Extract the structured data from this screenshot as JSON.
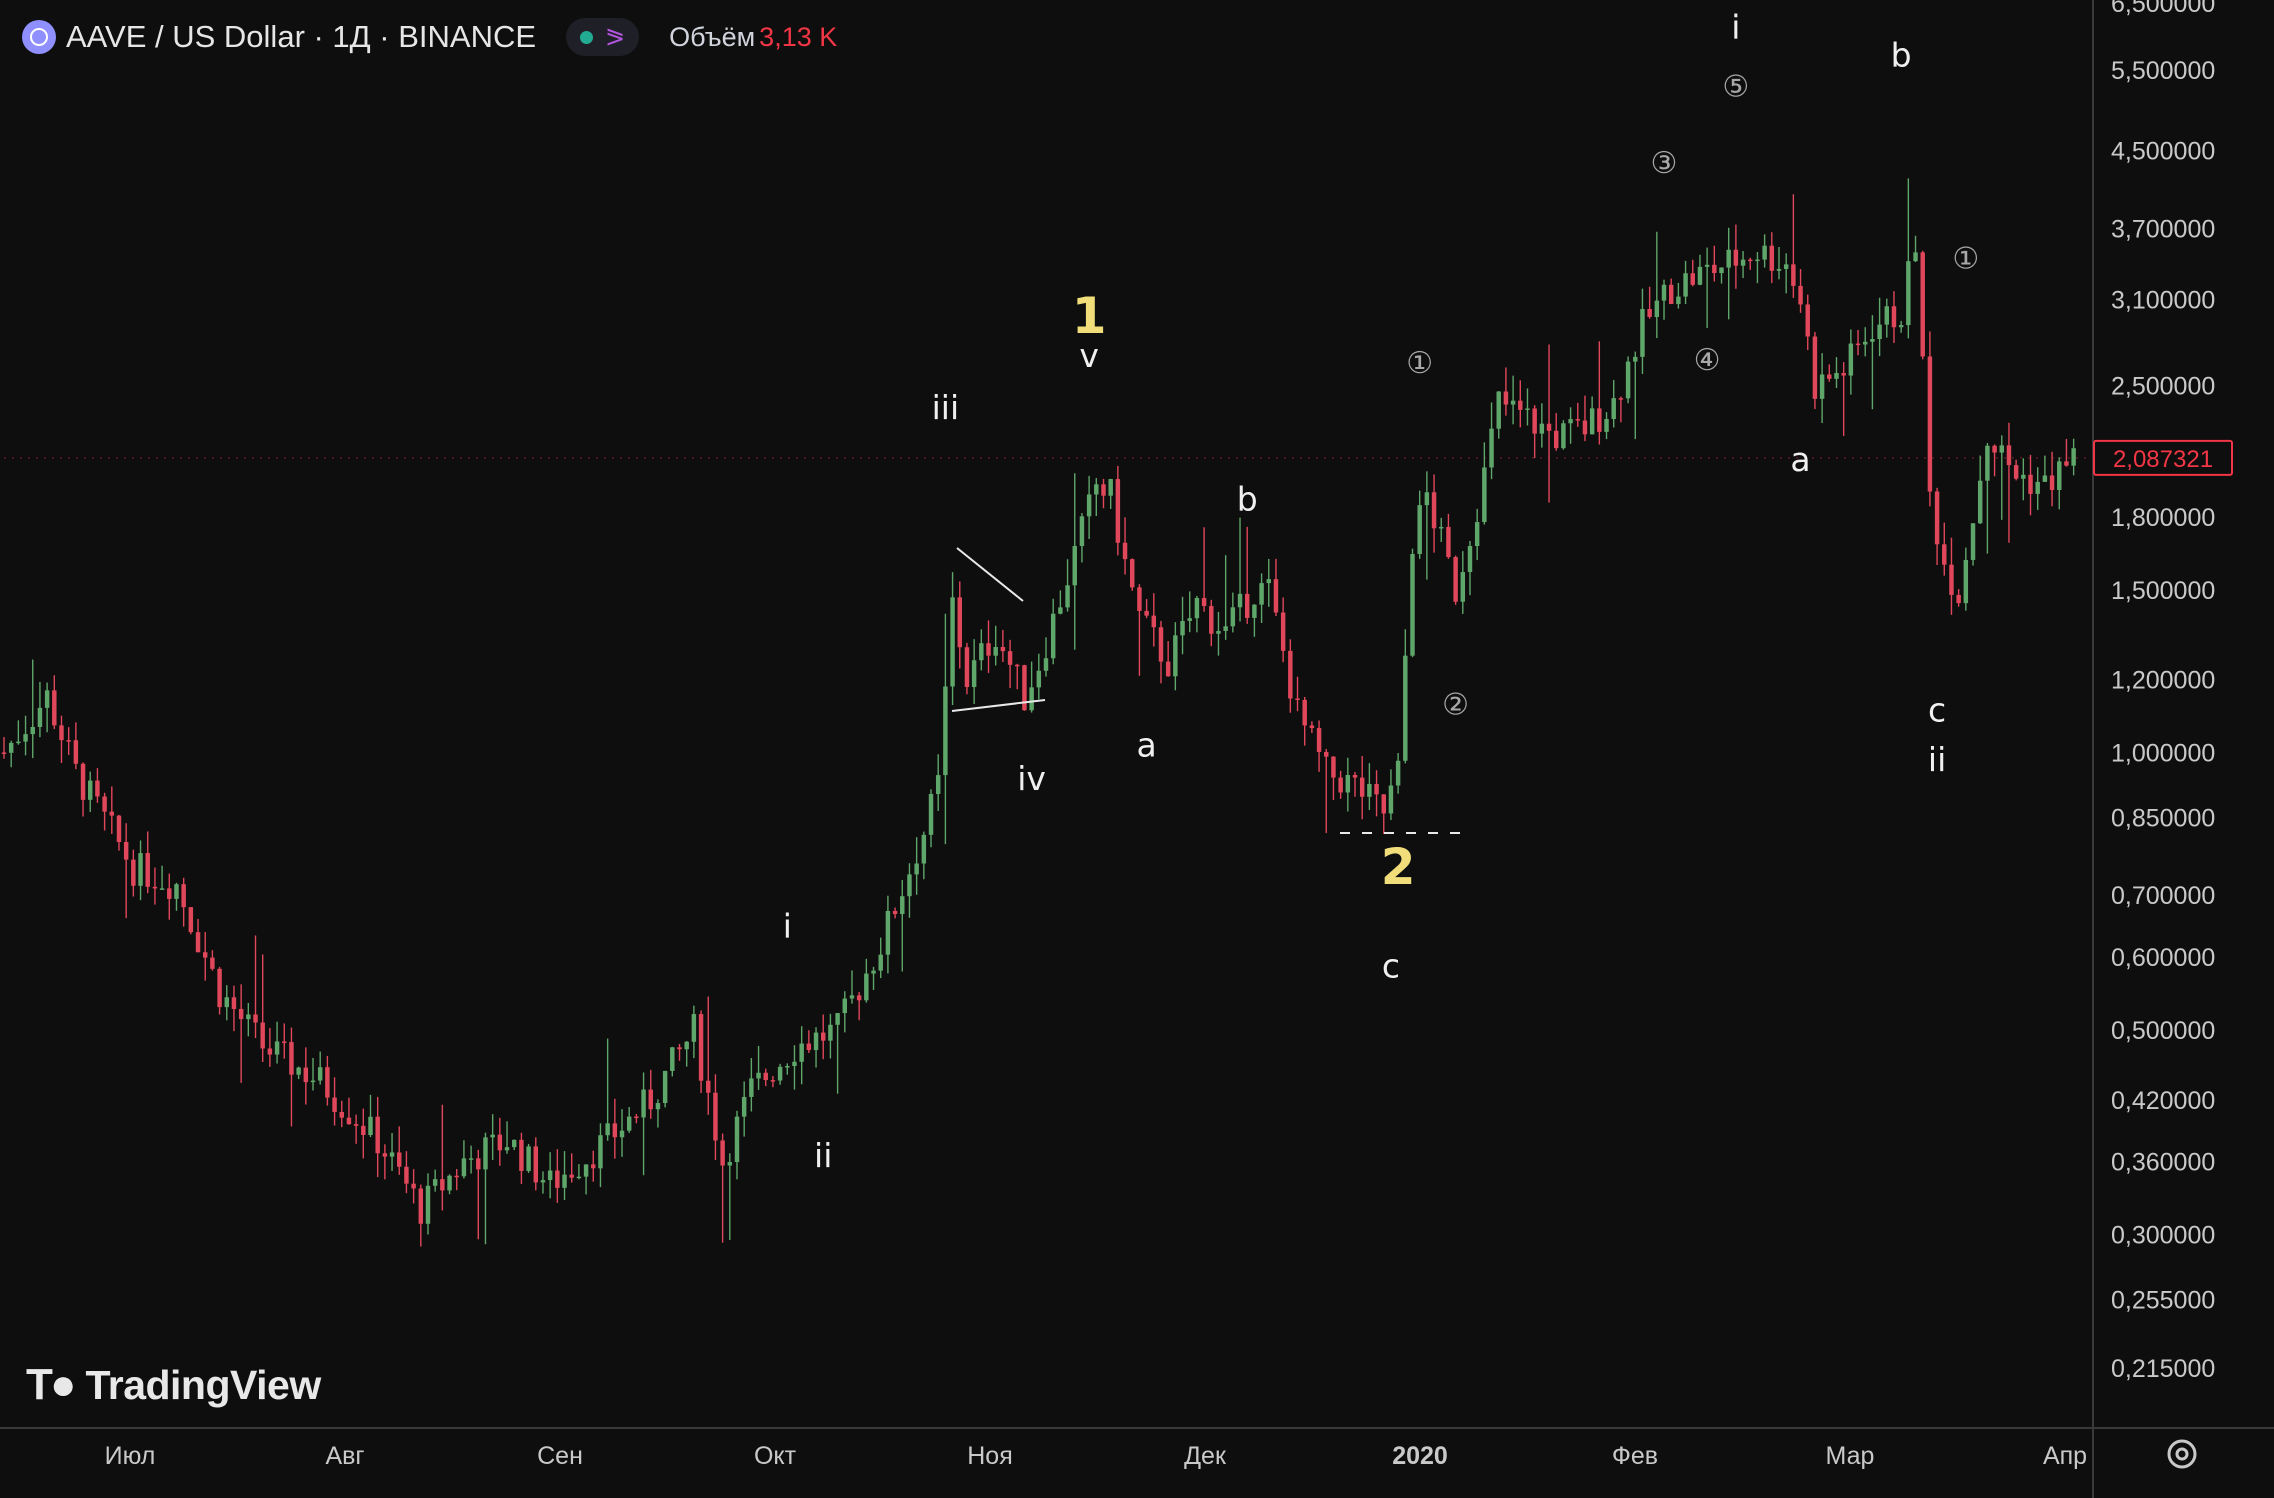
{
  "header": {
    "title": "AAVE / US Dollar · 1Д · BINANCE",
    "volume_label": "Объём",
    "volume_value": "3,13 K"
  },
  "brand": {
    "name": "TradingView"
  },
  "colors": {
    "up": "#5fa66a",
    "down": "#e0475a",
    "background": "#0e0e0e",
    "wave_major": "#f1de7a",
    "last_price": "#f23645"
  },
  "chart_data": {
    "type": "candlestick",
    "title": "AAVE / US Dollar · 1Д · BINANCE",
    "y_scale": "log",
    "ylim": [
      0.185,
      6.55
    ],
    "x_ticks": [
      "Июл",
      "Авг",
      "Сен",
      "Окт",
      "Ноя",
      "Дек",
      "2020",
      "Фев",
      "Мар",
      "Апр"
    ],
    "y_ticks": [
      "6,500000",
      "5,500000",
      "4,500000",
      "3,700000",
      "3,100000",
      "2,500000",
      "1,800000",
      "1,500000",
      "1,200000",
      "1,000000",
      "0,850000",
      "0,700000",
      "0,600000",
      "0,500000",
      "0,420000",
      "0,360000",
      "0,300000",
      "0,255000",
      "0,215000"
    ],
    "last_price": "2,087321",
    "price_path": [
      {
        "t": 0,
        "p": 1.0
      },
      {
        "t": 6,
        "p": 1.15
      },
      {
        "t": 10,
        "p": 0.95
      },
      {
        "t": 18,
        "p": 0.75
      },
      {
        "t": 24,
        "p": 0.72
      },
      {
        "t": 30,
        "p": 0.55
      },
      {
        "t": 36,
        "p": 0.48
      },
      {
        "t": 44,
        "p": 0.44
      },
      {
        "t": 52,
        "p": 0.38
      },
      {
        "t": 58,
        "p": 0.32
      },
      {
        "t": 64,
        "p": 0.36
      },
      {
        "t": 70,
        "p": 0.38
      },
      {
        "t": 76,
        "p": 0.34
      },
      {
        "t": 84,
        "p": 0.38
      },
      {
        "t": 90,
        "p": 0.42
      },
      {
        "t": 96,
        "p": 0.5
      },
      {
        "t": 100,
        "p": 0.36
      },
      {
        "t": 104,
        "p": 0.43
      },
      {
        "t": 110,
        "p": 0.48
      },
      {
        "t": 116,
        "p": 0.5
      },
      {
        "t": 122,
        "p": 0.62
      },
      {
        "t": 128,
        "p": 0.82
      },
      {
        "t": 130,
        "p": 0.92
      },
      {
        "t": 132,
        "p": 1.45
      },
      {
        "t": 134,
        "p": 1.2
      },
      {
        "t": 138,
        "p": 1.35
      },
      {
        "t": 142,
        "p": 1.15
      },
      {
        "t": 144,
        "p": 1.25
      },
      {
        "t": 148,
        "p": 1.55
      },
      {
        "t": 152,
        "p": 1.95
      },
      {
        "t": 154,
        "p": 1.9
      },
      {
        "t": 156,
        "p": 1.6
      },
      {
        "t": 158,
        "p": 1.4
      },
      {
        "t": 162,
        "p": 1.25
      },
      {
        "t": 166,
        "p": 1.45
      },
      {
        "t": 170,
        "p": 1.35
      },
      {
        "t": 174,
        "p": 1.5
      },
      {
        "t": 176,
        "p": 1.5
      },
      {
        "t": 180,
        "p": 1.1
      },
      {
        "t": 184,
        "p": 0.95
      },
      {
        "t": 188,
        "p": 0.92
      },
      {
        "t": 192,
        "p": 0.86
      },
      {
        "t": 194,
        "p": 0.95
      },
      {
        "t": 196,
        "p": 1.7
      },
      {
        "t": 198,
        "p": 1.9
      },
      {
        "t": 202,
        "p": 1.5
      },
      {
        "t": 206,
        "p": 2.0
      },
      {
        "t": 208,
        "p": 2.4
      },
      {
        "t": 212,
        "p": 2.3
      },
      {
        "t": 216,
        "p": 2.2
      },
      {
        "t": 220,
        "p": 2.25
      },
      {
        "t": 224,
        "p": 2.4
      },
      {
        "t": 228,
        "p": 2.9
      },
      {
        "t": 232,
        "p": 3.2
      },
      {
        "t": 236,
        "p": 3.3
      },
      {
        "t": 240,
        "p": 3.4
      },
      {
        "t": 244,
        "p": 3.5
      },
      {
        "t": 248,
        "p": 3.4
      },
      {
        "t": 250,
        "p": 3.1
      },
      {
        "t": 252,
        "p": 2.5
      },
      {
        "t": 256,
        "p": 2.6
      },
      {
        "t": 260,
        "p": 2.9
      },
      {
        "t": 264,
        "p": 3.0
      },
      {
        "t": 266,
        "p": 3.6
      },
      {
        "t": 268,
        "p": 1.9
      },
      {
        "t": 270,
        "p": 1.6
      },
      {
        "t": 272,
        "p": 1.5
      },
      {
        "t": 276,
        "p": 2.2
      },
      {
        "t": 280,
        "p": 2.0
      },
      {
        "t": 284,
        "p": 1.95
      },
      {
        "t": 288,
        "p": 2.09
      }
    ],
    "wave_labels": [
      {
        "text": "1",
        "t": 151,
        "p": 2.85,
        "kind": "major"
      },
      {
        "text": "2",
        "t": 194,
        "p": 0.72,
        "kind": "major"
      },
      {
        "text": "v",
        "t": 151,
        "p": 2.62,
        "kind": "minor"
      },
      {
        "text": "iii",
        "t": 131,
        "p": 2.3,
        "kind": "minor"
      },
      {
        "text": "iv",
        "t": 143,
        "p": 0.91,
        "kind": "minor"
      },
      {
        "text": "i",
        "t": 109,
        "p": 0.63,
        "kind": "minor"
      },
      {
        "text": "ii",
        "t": 114,
        "p": 0.355,
        "kind": "minor"
      },
      {
        "text": "a",
        "t": 159,
        "p": 0.99,
        "kind": "minor"
      },
      {
        "text": "b",
        "t": 173,
        "p": 1.83,
        "kind": "minor"
      },
      {
        "text": "c",
        "t": 193,
        "p": 0.57,
        "kind": "minor"
      },
      {
        "text": "①",
        "t": 197,
        "p": 2.58,
        "kind": "circled"
      },
      {
        "text": "②",
        "t": 202,
        "p": 1.1,
        "kind": "circled"
      },
      {
        "text": "③",
        "t": 231,
        "p": 4.25,
        "kind": "circled"
      },
      {
        "text": "④",
        "t": 237,
        "p": 2.6,
        "kind": "circled"
      },
      {
        "text": "⑤",
        "t": 241,
        "p": 5.15,
        "kind": "circled"
      },
      {
        "text": "i",
        "t": 241,
        "p": 5.95,
        "kind": "minor"
      },
      {
        "text": "a",
        "t": 250,
        "p": 2.02,
        "kind": "minor"
      },
      {
        "text": "b",
        "t": 264,
        "p": 5.55,
        "kind": "minor"
      },
      {
        "text": "c",
        "t": 269,
        "p": 1.08,
        "kind": "minor"
      },
      {
        "text": "ii",
        "t": 269,
        "p": 0.955,
        "kind": "minor"
      },
      {
        "text": "①",
        "t": 273,
        "p": 3.35,
        "kind": "circled"
      }
    ]
  }
}
